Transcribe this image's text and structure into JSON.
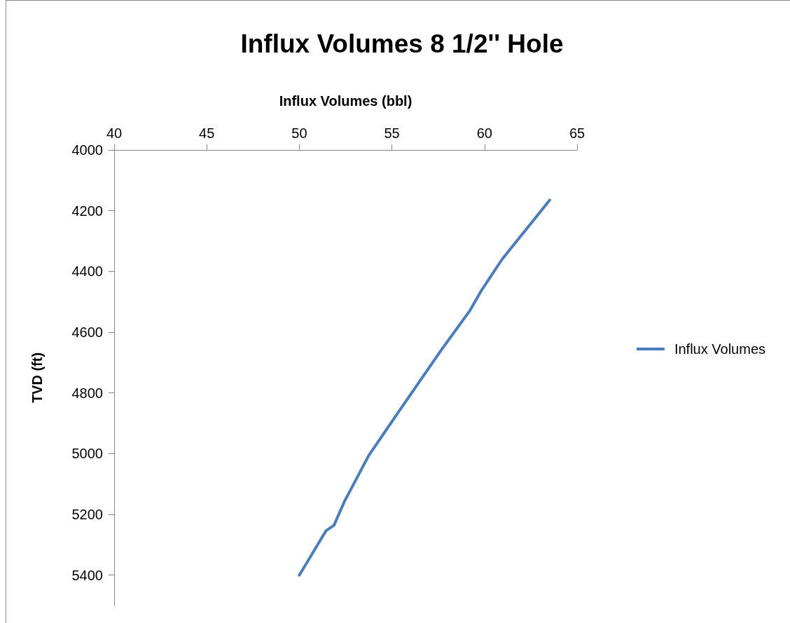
{
  "chart_data": {
    "type": "line",
    "title": "Influx Volumes 8 1/2'' Hole",
    "xlabel": "Influx Volumes (bbl)",
    "ylabel": "TVD (ft)",
    "x": [
      63.52,
      60.95,
      59.8,
      59.22,
      57.64,
      55.33,
      53.75,
      52.44,
      51.87,
      51.44,
      50.0
    ],
    "series": [
      {
        "name": "Influx Volumes",
        "color": "#4a7ebb",
        "values": [
          4165,
          4360,
          4466,
          4528,
          4661,
          4865,
          5006,
          5157,
          5236,
          5254,
          5400
        ]
      }
    ],
    "xlim": [
      40,
      65
    ],
    "xticks": [
      40,
      45,
      50,
      55,
      60,
      65
    ],
    "ylim": [
      5500,
      4000
    ],
    "yticks": [
      4000,
      4200,
      4400,
      4600,
      4800,
      5000,
      5200,
      5400
    ],
    "grid": false,
    "legend": "right",
    "marker": "none",
    "line_style": "solid"
  }
}
